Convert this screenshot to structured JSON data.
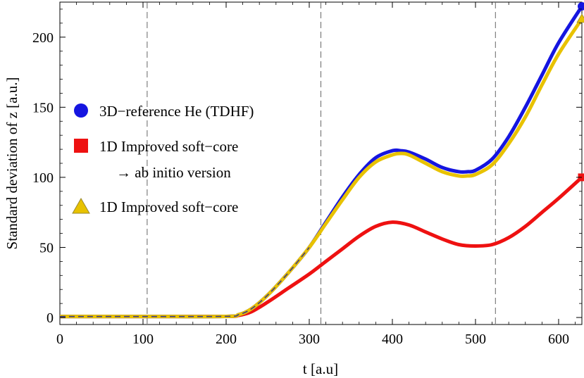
{
  "chart_data": {
    "type": "line",
    "xlabel": "t  [a.u]",
    "ylabel": "Standard  deviation  of  z  [a.u.]",
    "xlim": [
      0,
      628
    ],
    "ylim": [
      -5,
      225
    ],
    "xticks": [
      0,
      100,
      200,
      300,
      400,
      500,
      600
    ],
    "yticks": [
      0,
      50,
      100,
      150,
      200
    ],
    "xtick_labels": [
      "0",
      "100",
      "200",
      "300",
      "400",
      "500",
      "600"
    ],
    "ytick_labels": [
      "0",
      "50",
      "100",
      "150",
      "200"
    ],
    "vlines": [
      105,
      314,
      524
    ],
    "grid": false,
    "legend_position": "left-center",
    "series": [
      {
        "name": "3D−reference He (TDHF)",
        "color": "#1515e0",
        "marker": "circle",
        "x": [
          0,
          100,
          200,
          215,
          230,
          250,
          275,
          300,
          320,
          340,
          360,
          380,
          400,
          410,
          420,
          440,
          460,
          480,
          490,
          500,
          520,
          540,
          560,
          580,
          600,
          628
        ],
        "y": [
          0.7,
          0.7,
          0.8,
          2,
          6,
          16,
          32,
          50,
          68,
          86,
          102,
          114,
          119,
          119,
          118,
          113,
          107,
          104,
          104,
          105,
          113,
          129,
          150,
          173,
          196,
          222
        ]
      },
      {
        "name": "1D Improved soft−core",
        "name_line2": "→ ab initio version",
        "color": "#ee1111",
        "marker": "square",
        "x": [
          0,
          100,
          200,
          215,
          230,
          250,
          275,
          300,
          320,
          340,
          360,
          380,
          400,
          420,
          440,
          460,
          480,
          500,
          520,
          540,
          560,
          580,
          600,
          628
        ],
        "y": [
          0.7,
          0.7,
          0.8,
          1.5,
          4,
          11,
          21,
          31,
          40,
          49,
          58,
          65,
          68,
          66,
          61,
          56,
          52,
          51,
          52,
          57,
          65,
          75,
          85,
          100
        ]
      },
      {
        "name": "1D Improved soft−core",
        "color": "#e8c200",
        "marker": "triangle",
        "x": [
          0,
          100,
          200,
          215,
          230,
          250,
          275,
          300,
          320,
          340,
          360,
          380,
          400,
          410,
          420,
          440,
          460,
          480,
          490,
          500,
          520,
          540,
          560,
          580,
          600,
          628
        ],
        "y": [
          0.7,
          0.7,
          0.8,
          2,
          6,
          16,
          32,
          50,
          67,
          84,
          100,
          111,
          116,
          117,
          116,
          110,
          104,
          101,
          101,
          102,
          109,
          124,
          143,
          166,
          188,
          213
        ]
      }
    ]
  }
}
